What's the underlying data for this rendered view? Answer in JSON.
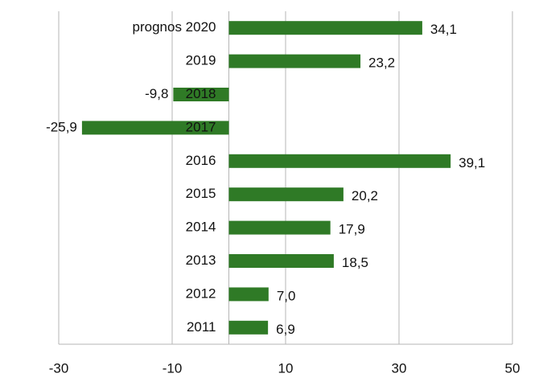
{
  "chart_data": {
    "type": "barh",
    "categories": [
      "prognos 2020",
      "2019",
      "2018",
      "2017",
      "2016",
      "2015",
      "2014",
      "2013",
      "2012",
      "2011"
    ],
    "values": [
      34.1,
      23.2,
      -9.8,
      -25.9,
      39.1,
      20.2,
      17.9,
      18.5,
      7.0,
      6.9
    ],
    "value_labels": [
      "34,1",
      "23,2",
      "-9,8",
      "-25,9",
      "39,1",
      "20,2",
      "17,9",
      "18,5",
      "7,0",
      "6,9"
    ],
    "color": "#2f7a26",
    "xlim": [
      -30,
      50
    ],
    "xticks": [
      -30,
      -10,
      10,
      30,
      50
    ],
    "grid": true
  }
}
